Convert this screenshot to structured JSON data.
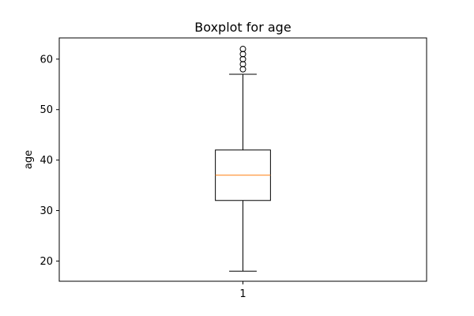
{
  "chart_data": {
    "type": "boxplot",
    "title": "Boxplot for age",
    "xlabel": "",
    "ylabel": "age",
    "ylim": [
      16,
      64.2
    ],
    "xlim": [
      0.5,
      1.5
    ],
    "categories": [
      "1"
    ],
    "y_ticks": [
      20,
      30,
      40,
      50,
      60
    ],
    "grid": false,
    "boxes": [
      {
        "category": "1",
        "whisker_low": 18,
        "q1": 32,
        "median": 37,
        "q3": 42,
        "whisker_high": 57,
        "outliers": [
          58,
          59,
          60,
          61,
          62
        ]
      }
    ],
    "colors": {
      "box": "#000000",
      "median": "#ff7f0e",
      "outlier": "#000000"
    }
  }
}
